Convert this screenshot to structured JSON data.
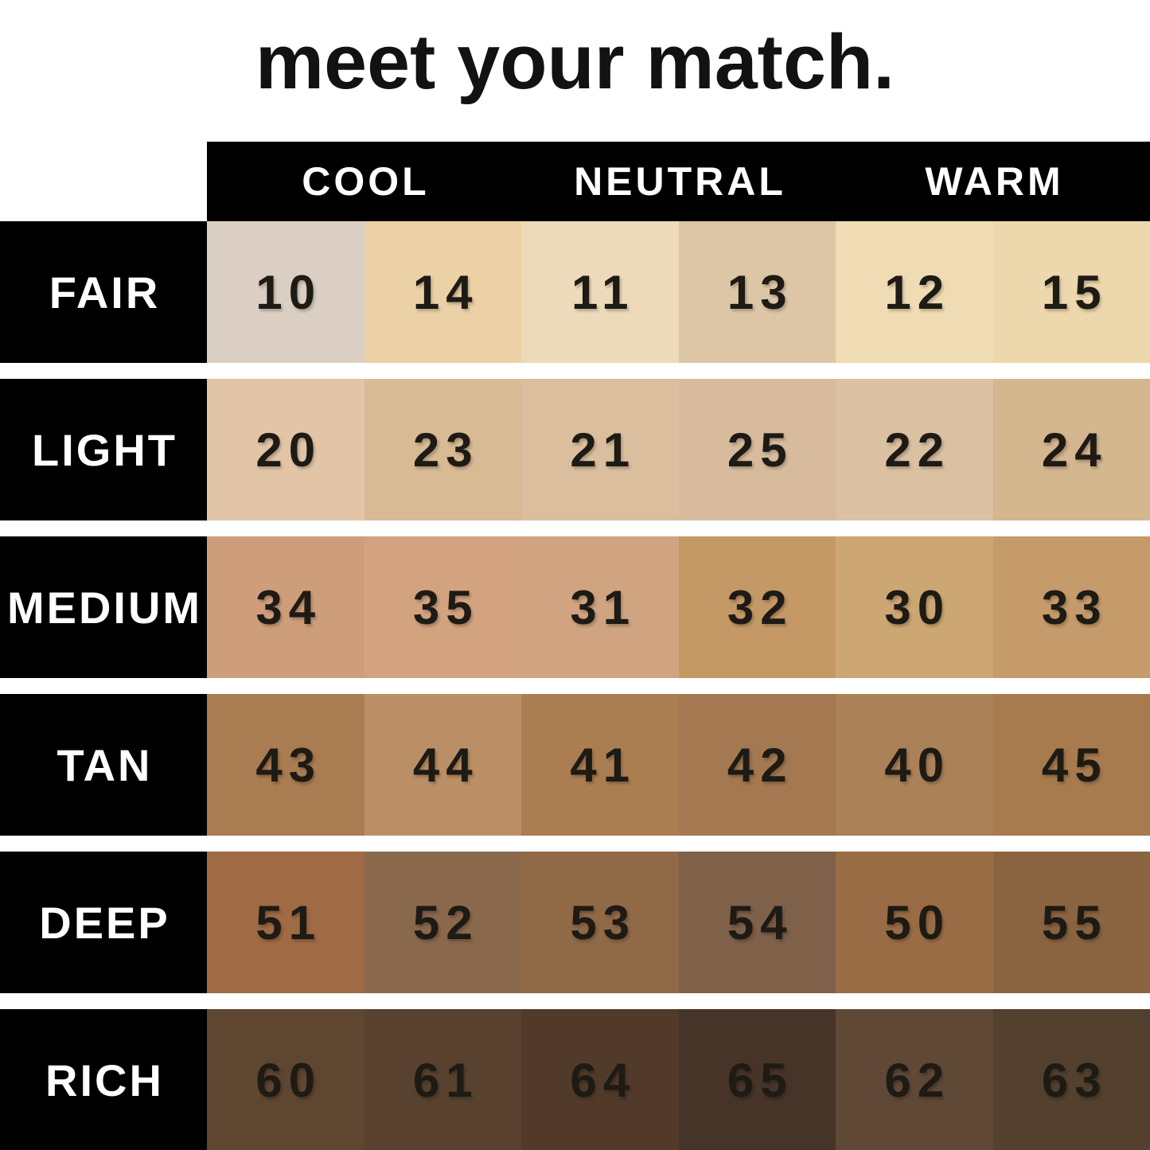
{
  "title": "meet your match.",
  "chart_data": {
    "type": "table",
    "title": "meet your match.",
    "column_groups": [
      "COOL",
      "NEUTRAL",
      "WARM"
    ],
    "row_labels": [
      "FAIR",
      "LIGHT",
      "MEDIUM",
      "TAN",
      "DEEP",
      "RICH"
    ],
    "rows": [
      {
        "label": "FAIR",
        "shades": [
          {
            "number": "10",
            "hex": "#dbcec3"
          },
          {
            "number": "14",
            "hex": "#ecd1a6"
          },
          {
            "number": "11",
            "hex": "#ecdaba"
          },
          {
            "number": "13",
            "hex": "#dcc6a6"
          },
          {
            "number": "12",
            "hex": "#f0dcb4"
          },
          {
            "number": "15",
            "hex": "#edd7ac"
          }
        ]
      },
      {
        "label": "LIGHT",
        "shades": [
          {
            "number": "20",
            "hex": "#e2c5a6"
          },
          {
            "number": "23",
            "hex": "#d8ba94"
          },
          {
            "number": "21",
            "hex": "#dbbe9d"
          },
          {
            "number": "25",
            "hex": "#d8bb9d"
          },
          {
            "number": "22",
            "hex": "#dbc0a2"
          },
          {
            "number": "24",
            "hex": "#d4b68f"
          }
        ]
      },
      {
        "label": "MEDIUM",
        "shades": [
          {
            "number": "34",
            "hex": "#ce9e7b"
          },
          {
            "number": "35",
            "hex": "#d3a380"
          },
          {
            "number": "31",
            "hex": "#d0a480"
          },
          {
            "number": "32",
            "hex": "#c59966"
          },
          {
            "number": "30",
            "hex": "#cda773"
          },
          {
            "number": "33",
            "hex": "#c59b6b"
          }
        ]
      },
      {
        "label": "TAN",
        "shades": [
          {
            "number": "43",
            "hex": "#a97c51"
          },
          {
            "number": "44",
            "hex": "#bb8f66"
          },
          {
            "number": "41",
            "hex": "#ab7e52"
          },
          {
            "number": "42",
            "hex": "#a47850"
          },
          {
            "number": "40",
            "hex": "#ab8158"
          },
          {
            "number": "45",
            "hex": "#a87b4f"
          }
        ]
      },
      {
        "label": "DEEP",
        "shades": [
          {
            "number": "51",
            "hex": "#a06a44"
          },
          {
            "number": "52",
            "hex": "#8a684c"
          },
          {
            "number": "53",
            "hex": "#906946"
          },
          {
            "number": "54",
            "hex": "#7f6048"
          },
          {
            "number": "50",
            "hex": "#9a6c46"
          },
          {
            "number": "55",
            "hex": "#8a6441"
          }
        ]
      },
      {
        "label": "RICH",
        "shades": [
          {
            "number": "60",
            "hex": "#5e4630"
          },
          {
            "number": "61",
            "hex": "#58422f"
          },
          {
            "number": "64",
            "hex": "#523a2a"
          },
          {
            "number": "65",
            "hex": "#473428"
          },
          {
            "number": "62",
            "hex": "#5f4836"
          },
          {
            "number": "63",
            "hex": "#53402e"
          }
        ]
      }
    ],
    "layout": {
      "legend_position": "none",
      "grid": false
    },
    "colors": {
      "background": "#ffffff",
      "cell_black": "#000000",
      "header_text": "#ffffff",
      "row_label_text": "#ffffff",
      "number_text": "#1e1a14",
      "title_text": "#121212"
    }
  }
}
